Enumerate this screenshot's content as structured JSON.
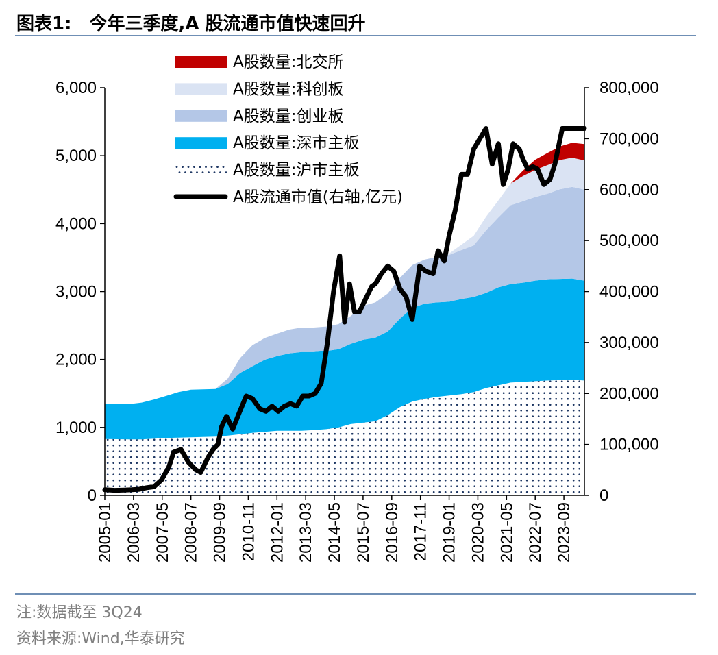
{
  "title": {
    "label": "图表1:",
    "text": "今年三季度,A 股流通市值快速回升"
  },
  "footer": {
    "note": "注:数据截至 3Q24",
    "source": "资料来源:Wind,华泰研究"
  },
  "colors": {
    "bse": "#c00000",
    "star": "#dae3f3",
    "chinext": "#b4c7e7",
    "sz_main": "#00b0f0",
    "sh_main_dots": "#1f3864",
    "market_cap": "#000000",
    "rule": "#6f8fb5"
  },
  "chart_data": {
    "type": "area",
    "title": "今年三季度,A 股流通市值快速回升",
    "stacked": true,
    "left_axis": {
      "min": 0,
      "max": 6000,
      "ticks": [
        0,
        1000,
        2000,
        3000,
        4000,
        5000,
        6000
      ],
      "tick_labels": [
        "0",
        "1,000",
        "2,000",
        "3,000",
        "4,000",
        "5,000",
        "6,000"
      ]
    },
    "right_axis": {
      "min": 0,
      "max": 800000,
      "ticks": [
        0,
        100000,
        200000,
        300000,
        400000,
        500000,
        600000,
        700000,
        800000
      ],
      "tick_labels": [
        "0",
        "100,000",
        "200,000",
        "300,000",
        "400,000",
        "500,000",
        "600,000",
        "700,000",
        "800,000"
      ]
    },
    "x_tick_labels": [
      "2005-01",
      "2006-03",
      "2007-05",
      "2008-07",
      "2009-09",
      "2010-11",
      "2012-01",
      "2013-03",
      "2014-05",
      "2015-07",
      "2016-09",
      "2017-11",
      "2019-01",
      "2020-03",
      "2021-05",
      "2022-07",
      "2023-09"
    ],
    "x": [
      2005.0,
      2005.5,
      2006.0,
      2006.5,
      2007.0,
      2007.5,
      2008.0,
      2008.5,
      2009.0,
      2009.5,
      2010.0,
      2010.5,
      2011.0,
      2011.5,
      2012.0,
      2012.5,
      2013.0,
      2013.5,
      2014.0,
      2014.5,
      2015.0,
      2015.5,
      2016.0,
      2016.5,
      2017.0,
      2017.5,
      2018.0,
      2018.5,
      2019.0,
      2019.5,
      2020.0,
      2020.5,
      2021.0,
      2021.5,
      2022.0,
      2022.5,
      2023.0,
      2023.5,
      2024.0,
      2024.5
    ],
    "series": [
      {
        "name": "A股数量:沪市主板",
        "axis": "left",
        "style": "dots",
        "values": [
          830,
          827,
          824,
          825,
          835,
          845,
          850,
          855,
          860,
          865,
          880,
          900,
          920,
          935,
          950,
          950,
          950,
          960,
          975,
          1000,
          1050,
          1070,
          1090,
          1180,
          1300,
          1380,
          1420,
          1450,
          1470,
          1490,
          1520,
          1580,
          1620,
          1660,
          1670,
          1680,
          1690,
          1695,
          1700,
          1690
        ]
      },
      {
        "name": "A股数量:深市主板",
        "axis": "left",
        "style": "fill",
        "values": [
          520,
          520,
          520,
          540,
          575,
          620,
          670,
          700,
          700,
          700,
          760,
          900,
          980,
          1060,
          1100,
          1140,
          1160,
          1150,
          1150,
          1150,
          1180,
          1220,
          1230,
          1230,
          1300,
          1380,
          1400,
          1390,
          1380,
          1400,
          1400,
          1400,
          1440,
          1450,
          1460,
          1480,
          1490,
          1490,
          1490,
          1470
        ]
      },
      {
        "name": "A股数量:创业板",
        "axis": "left",
        "style": "fill",
        "values": [
          0,
          0,
          0,
          0,
          0,
          0,
          0,
          0,
          0,
          0,
          80,
          220,
          310,
          320,
          330,
          350,
          360,
          360,
          360,
          370,
          410,
          500,
          520,
          560,
          600,
          630,
          650,
          670,
          690,
          720,
          760,
          920,
          1030,
          1160,
          1200,
          1230,
          1260,
          1320,
          1350,
          1340
        ]
      },
      {
        "name": "A股数量:科创板",
        "axis": "left",
        "style": "fill",
        "values": [
          0,
          0,
          0,
          0,
          0,
          0,
          0,
          0,
          0,
          0,
          0,
          0,
          0,
          0,
          0,
          0,
          0,
          0,
          0,
          0,
          0,
          0,
          0,
          0,
          0,
          0,
          0,
          0,
          20,
          80,
          140,
          200,
          250,
          320,
          370,
          400,
          420,
          430,
          430,
          430
        ]
      },
      {
        "name": "A股数量:北交所",
        "axis": "left",
        "style": "fill",
        "values": [
          0,
          0,
          0,
          0,
          0,
          0,
          0,
          0,
          0,
          0,
          0,
          0,
          0,
          0,
          0,
          0,
          0,
          0,
          0,
          0,
          0,
          0,
          0,
          0,
          0,
          0,
          0,
          0,
          0,
          0,
          0,
          0,
          0,
          0,
          80,
          150,
          180,
          200,
          220,
          240
        ]
      }
    ],
    "line": {
      "name": "A股流通市值(右轴,亿元)",
      "axis": "right",
      "x": [
        2005.0,
        2005.4,
        2005.8,
        2006.1,
        2006.4,
        2006.7,
        2007.0,
        2007.3,
        2007.6,
        2007.8,
        2008.1,
        2008.4,
        2008.7,
        2008.9,
        2009.2,
        2009.4,
        2009.6,
        2009.75,
        2009.95,
        2010.2,
        2010.45,
        2010.75,
        2011.0,
        2011.3,
        2011.55,
        2011.8,
        2012.05,
        2012.3,
        2012.55,
        2012.8,
        2013.05,
        2013.3,
        2013.55,
        2013.8,
        2014.05,
        2014.3,
        2014.55,
        2014.75,
        2014.95,
        2015.15,
        2015.35,
        2015.5,
        2015.65,
        2015.85,
        2016.0,
        2016.25,
        2016.5,
        2016.75,
        2017.0,
        2017.25,
        2017.5,
        2017.8,
        2018.05,
        2018.35,
        2018.55,
        2018.8,
        2019.0,
        2019.25,
        2019.5,
        2019.75,
        2020.0,
        2020.25,
        2020.5,
        2020.75,
        2021.0,
        2021.2,
        2021.4,
        2021.6,
        2021.85,
        2022.0,
        2022.2,
        2022.4,
        2022.6,
        2022.85,
        2023.1,
        2023.3,
        2023.6,
        2023.85,
        2024.1,
        2024.3,
        2024.5
      ],
      "values": [
        11000,
        10000,
        10500,
        11000,
        12000,
        15000,
        17000,
        30000,
        55000,
        85000,
        90000,
        65000,
        50000,
        45000,
        75000,
        90000,
        100000,
        135000,
        155000,
        130000,
        160000,
        195000,
        190000,
        170000,
        165000,
        175000,
        165000,
        175000,
        180000,
        175000,
        195000,
        195000,
        200000,
        220000,
        300000,
        400000,
        470000,
        340000,
        415000,
        360000,
        360000,
        375000,
        390000,
        410000,
        415000,
        435000,
        450000,
        440000,
        405000,
        390000,
        345000,
        450000,
        440000,
        435000,
        480000,
        460000,
        510000,
        560000,
        630000,
        630000,
        680000,
        700000,
        720000,
        650000,
        690000,
        610000,
        640000,
        690000,
        680000,
        660000,
        640000,
        645000,
        640000,
        610000,
        620000,
        650000,
        720000,
        720000,
        720000,
        720000,
        720000
      ]
    },
    "legend": [
      "A股数量:北交所",
      "A股数量:科创板",
      "A股数量:创业板",
      "A股数量:深市主板",
      "A股数量:沪市主板",
      "A股流通市值(右轴,亿元)"
    ],
    "legend_position": "top-center"
  }
}
